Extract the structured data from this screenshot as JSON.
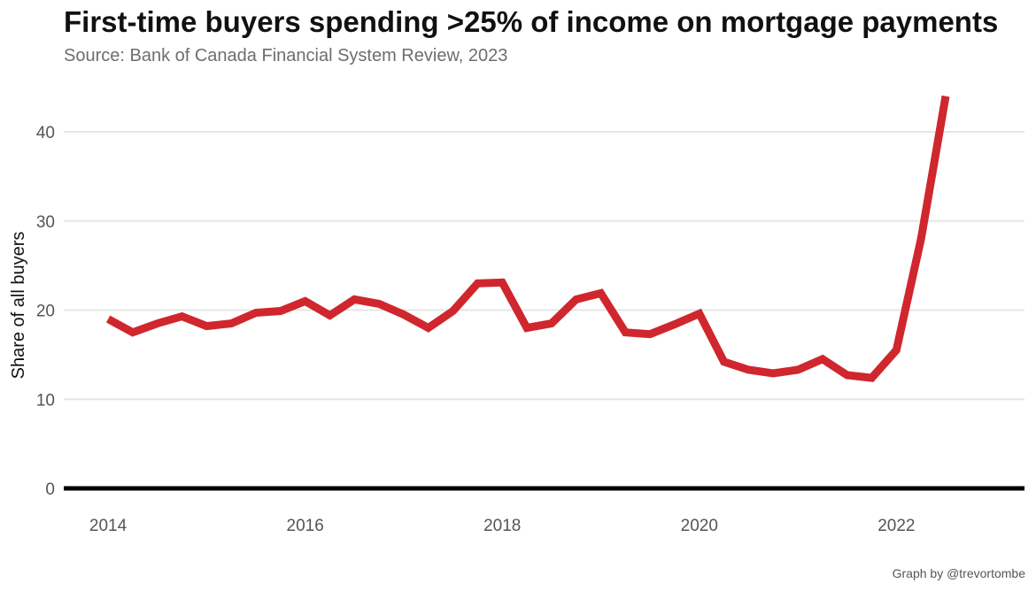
{
  "title": "First-time buyers spending >25% of income on mortgage payments",
  "subtitle": "Source: Bank of Canada Financial System Review, 2023",
  "caption": "Graph by @trevortombe",
  "chart_data": {
    "type": "line",
    "title": "First-time buyers spending >25% of income on mortgage payments",
    "subtitle": "Source: Bank of Canada Financial System Review, 2023",
    "xlabel": "",
    "ylabel": "Share of all buyers",
    "xlim": [
      2013.55,
      2023.3
    ],
    "ylim": [
      0,
      45
    ],
    "x_ticks": [
      2014,
      2016,
      2018,
      2020,
      2022
    ],
    "y_ticks": [
      0,
      10,
      20,
      30,
      40
    ],
    "grid": "horizontal",
    "series": [
      {
        "color": "#d0262d",
        "x": [
          2014.0,
          2014.25,
          2014.5,
          2014.75,
          2015.0,
          2015.25,
          2015.5,
          2015.75,
          2016.0,
          2016.25,
          2016.5,
          2016.75,
          2017.0,
          2017.25,
          2017.5,
          2017.75,
          2018.0,
          2018.25,
          2018.5,
          2018.75,
          2019.0,
          2019.25,
          2019.5,
          2019.75,
          2020.0,
          2020.25,
          2020.5,
          2020.75,
          2021.0,
          2021.25,
          2021.5,
          2021.75,
          2022.0,
          2022.25,
          2022.5
        ],
        "y": [
          19.0,
          17.5,
          18.5,
          19.3,
          18.2,
          18.5,
          19.7,
          19.9,
          21.0,
          19.4,
          21.2,
          20.7,
          19.5,
          18.0,
          19.9,
          23.0,
          23.1,
          18.0,
          18.5,
          21.2,
          21.9,
          17.5,
          17.3,
          18.4,
          19.6,
          14.2,
          13.3,
          12.9,
          13.3,
          14.5,
          12.7,
          12.4,
          15.5,
          28.0,
          44.0
        ]
      }
    ]
  }
}
